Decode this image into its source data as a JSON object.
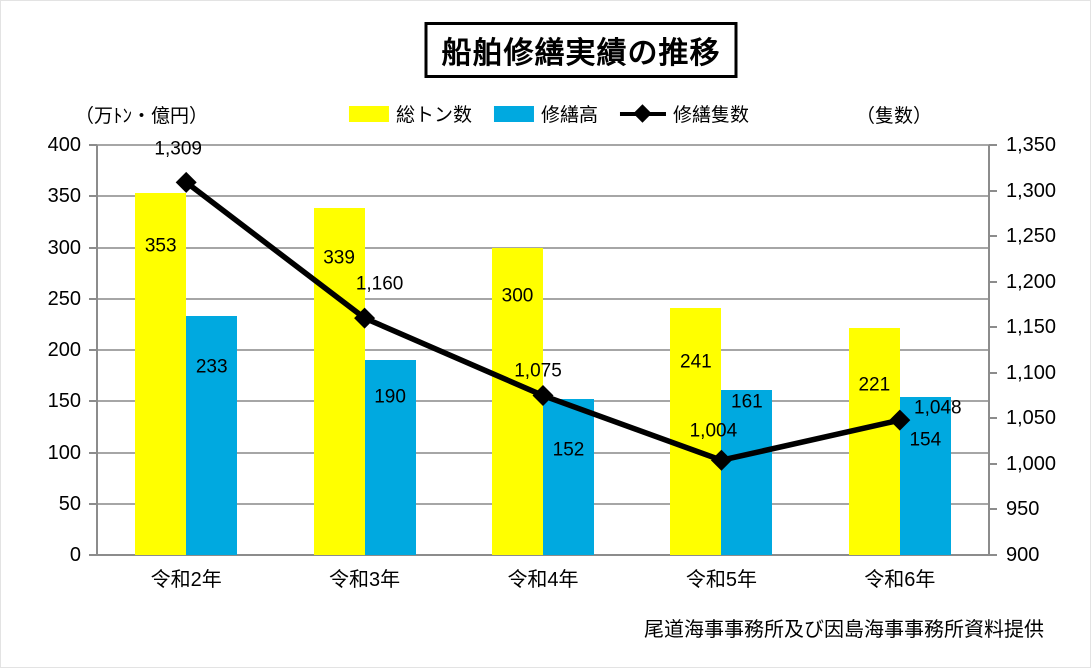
{
  "title": "船舶修繕実績の推移",
  "axis_unit_left": "（万ﾄﾝ・億円）",
  "axis_unit_right": "（隻数）",
  "source_note": "尾道海事事務所及び因島海事事務所資料提供",
  "colors": {
    "tonnage_bar": "#FFFF00",
    "repair_bar": "#00A9E0",
    "ships_line": "#000000",
    "gridline": "#A6A6A6",
    "axis": "#8C8C8C"
  },
  "legend": [
    {
      "label": "総トン数",
      "marker": "bar",
      "color": "#FFFF00"
    },
    {
      "label": "修繕高",
      "marker": "bar",
      "color": "#00A9E0"
    },
    {
      "label": "修繕隻数",
      "marker": "line",
      "color": "#000000"
    }
  ],
  "chart_data": {
    "type": "bar+line combo",
    "title": "船舶修繕実績の推移",
    "categories": [
      "令和2年",
      "令和3年",
      "令和4年",
      "令和5年",
      "令和6年"
    ],
    "series": [
      {
        "name": "総トン数",
        "type": "bar",
        "axis": "left",
        "color": "#FFFF00",
        "values": [
          353,
          339,
          300,
          241,
          221
        ],
        "labels": [
          "353",
          "339",
          "300",
          "241",
          "221"
        ]
      },
      {
        "name": "修繕高",
        "type": "bar",
        "axis": "left",
        "color": "#00A9E0",
        "values": [
          233,
          190,
          152,
          161,
          154
        ],
        "labels": [
          "233",
          "190",
          "152",
          "161",
          "154"
        ]
      },
      {
        "name": "修繕隻数",
        "type": "line",
        "axis": "right",
        "color": "#000000",
        "values": [
          1309,
          1160,
          1075,
          1004,
          1048
        ],
        "labels": [
          "1,309",
          "1,160",
          "1,075",
          "1,004",
          "1,048"
        ]
      }
    ],
    "left_axis": {
      "unit": "（万ﾄﾝ・億円）",
      "min": 0,
      "max": 400,
      "step": 50,
      "ticks": [
        "0",
        "50",
        "100",
        "150",
        "200",
        "250",
        "300",
        "350",
        "400"
      ]
    },
    "right_axis": {
      "unit": "（隻数）",
      "min": 900,
      "max": 1350,
      "step": 50,
      "ticks": [
        "900",
        "950",
        "1,000",
        "1,050",
        "1,100",
        "1,150",
        "1,200",
        "1,250",
        "1,300",
        "1,350"
      ]
    },
    "grid": true,
    "legend_position": "top",
    "source_note": "尾道海事事務所及び因島海事事務所資料提供"
  }
}
